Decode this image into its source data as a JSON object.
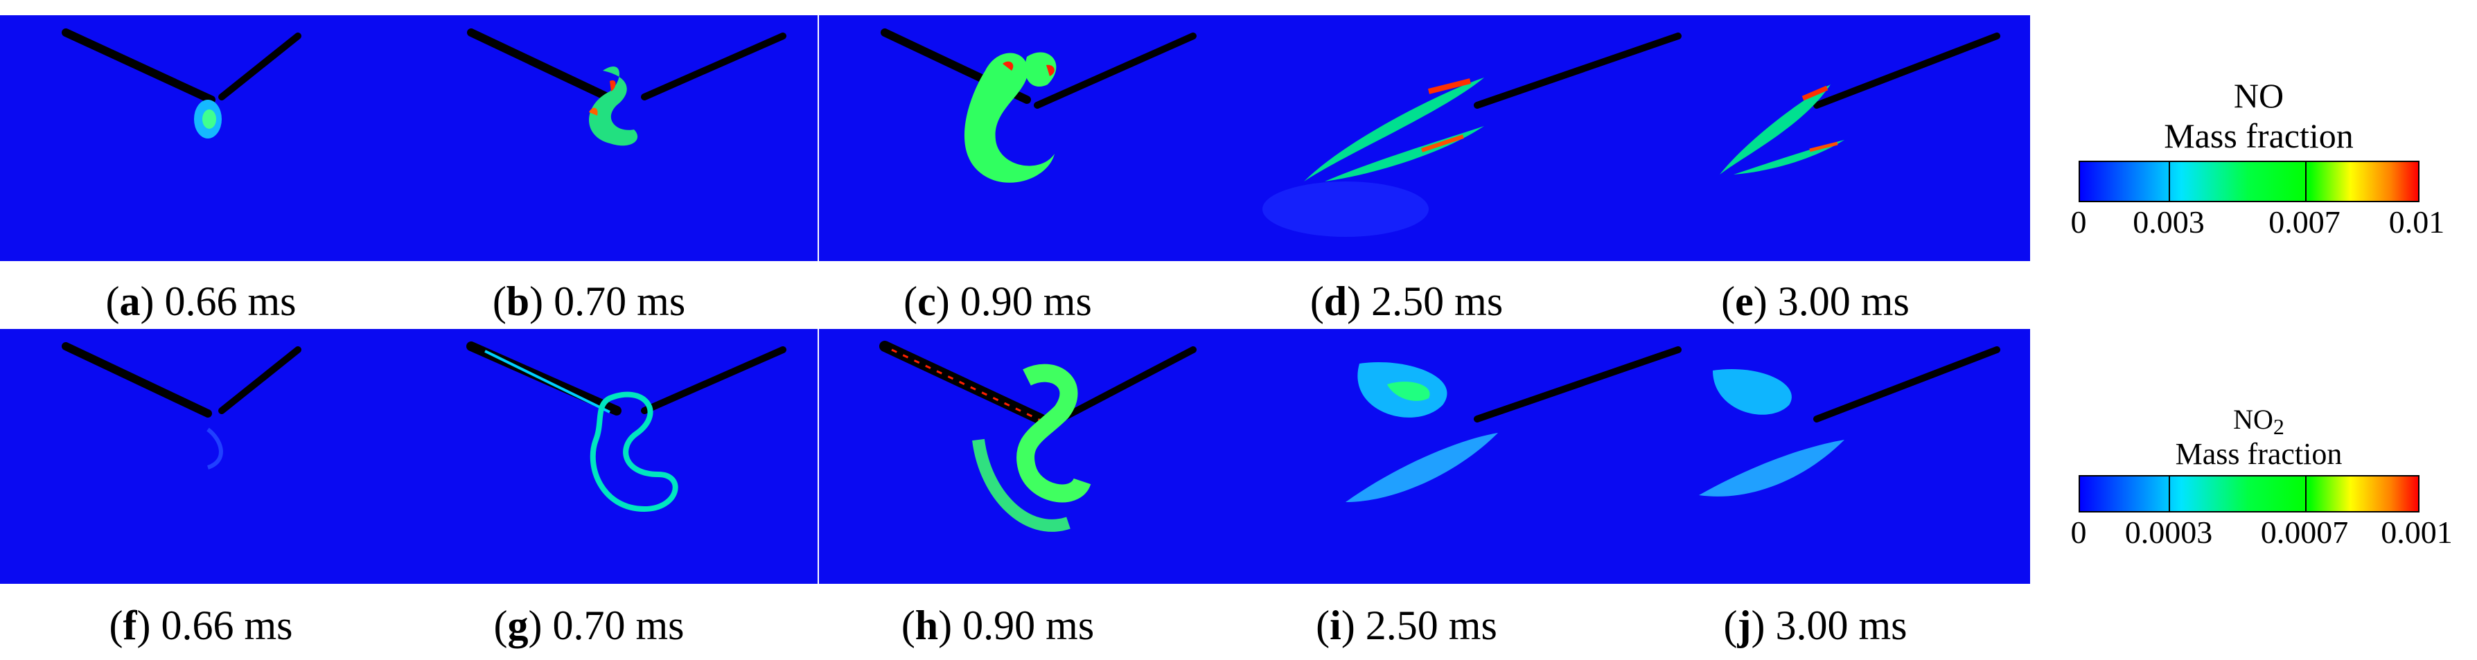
{
  "rows": [
    {
      "panels": [
        {
          "letter": "a",
          "time": "0.66 ms"
        },
        {
          "letter": "b",
          "time": "0.70 ms"
        },
        {
          "letter": "c",
          "time": "0.90 ms"
        },
        {
          "letter": "d",
          "time": "2.50 ms"
        },
        {
          "letter": "e",
          "time": "3.00 ms"
        }
      ]
    },
    {
      "panels": [
        {
          "letter": "f",
          "time": "0.66 ms"
        },
        {
          "letter": "g",
          "time": "0.70 ms"
        },
        {
          "letter": "h",
          "time": "0.90 ms"
        },
        {
          "letter": "i",
          "time": "2.50 ms"
        },
        {
          "letter": "j",
          "time": "3.00 ms"
        }
      ]
    }
  ],
  "legend_no": {
    "species": "NO",
    "subtitle": "Mass fraction",
    "ticks": [
      "0",
      "0.003",
      "0.007",
      "0.01"
    ]
  },
  "legend_no2": {
    "species": "NO",
    "species_sub": "2",
    "subtitle": "Mass fraction",
    "ticks": [
      "0",
      "0.0003",
      "0.0007",
      "0.001"
    ]
  },
  "colors": {
    "background": "#0a0af2",
    "colormap": [
      "#0000ff",
      "#00e5ff",
      "#00ff00",
      "#ffff00",
      "#ff0000"
    ]
  }
}
